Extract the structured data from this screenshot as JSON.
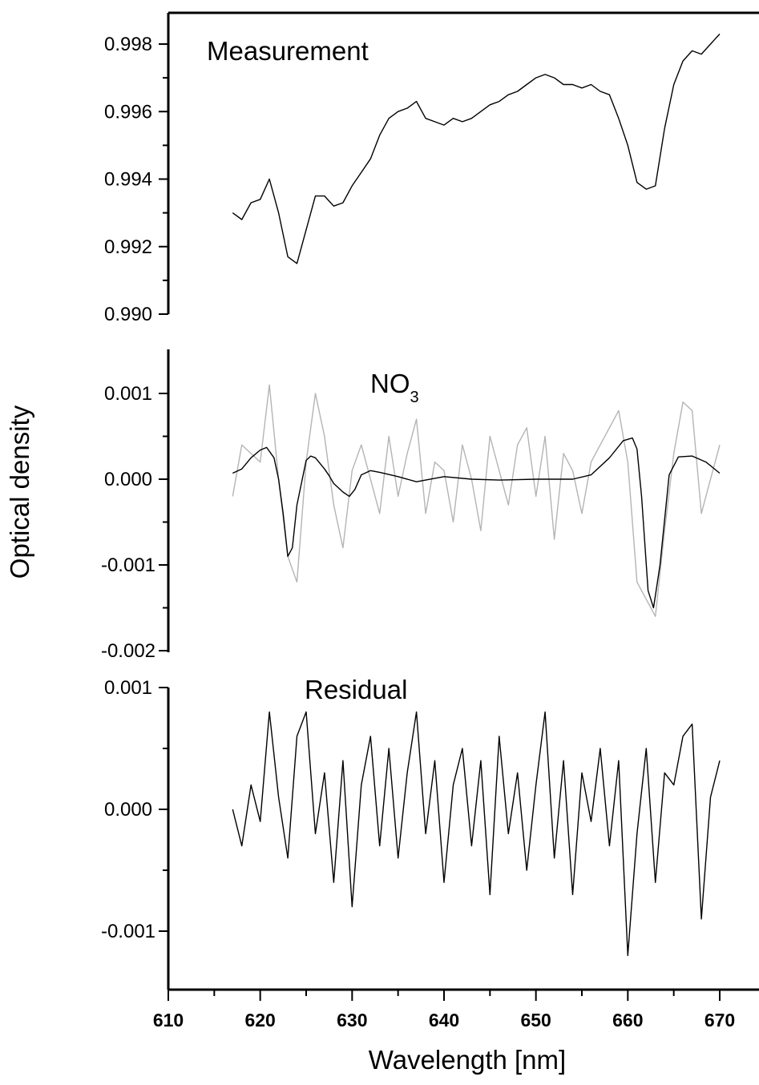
{
  "chart_data": {
    "type": "line",
    "shared_x_axis": {
      "label": "Wavelength [nm]",
      "xlim": [
        610,
        675
      ],
      "ticks": [
        610,
        620,
        630,
        640,
        650,
        660,
        670
      ],
      "tick_labels": [
        "610",
        "620",
        "630",
        "640",
        "650",
        "660",
        "670"
      ]
    },
    "shared_y_label": "Optical density",
    "panels": [
      {
        "title": "Measurement",
        "ylim": [
          0.99,
          0.999
        ],
        "yticks": [
          0.99,
          0.992,
          0.994,
          0.996,
          0.998
        ],
        "ytick_labels": [
          "0.990",
          "0.992",
          "0.994",
          "0.996",
          "0.998"
        ],
        "series": [
          {
            "color": "#000000",
            "x": [
              617,
              618,
              619,
              620,
              621,
              622,
              623,
              624,
              625,
              626,
              627,
              628,
              629,
              630,
              631,
              632,
              633,
              634,
              635,
              636,
              637,
              638,
              639,
              640,
              641,
              642,
              643,
              644,
              645,
              646,
              647,
              648,
              649,
              650,
              651,
              652,
              653,
              654,
              655,
              656,
              657,
              658,
              659,
              660,
              661,
              662,
              663,
              664,
              665,
              666,
              667,
              668,
              669,
              670
            ],
            "y": [
              0.993,
              0.9928,
              0.9933,
              0.9934,
              0.994,
              0.993,
              0.9917,
              0.9915,
              0.9925,
              0.9935,
              0.9935,
              0.9932,
              0.9933,
              0.9938,
              0.9942,
              0.9946,
              0.9953,
              0.9958,
              0.996,
              0.9961,
              0.9963,
              0.9958,
              0.9957,
              0.9956,
              0.9958,
              0.9957,
              0.9958,
              0.996,
              0.9962,
              0.9963,
              0.9965,
              0.9966,
              0.9968,
              0.997,
              0.9971,
              0.997,
              0.9968,
              0.9968,
              0.9967,
              0.9968,
              0.9966,
              0.9965,
              0.9958,
              0.995,
              0.9939,
              0.9937,
              0.9938,
              0.9955,
              0.9968,
              0.9975,
              0.9978,
              0.9977,
              0.998,
              0.9983
            ]
          }
        ]
      },
      {
        "title": "NO",
        "title_subscript": "3",
        "ylim": [
          -0.002,
          0.0015
        ],
        "yticks": [
          -0.002,
          -0.001,
          0.0,
          0.001
        ],
        "ytick_labels": [
          "-0.002",
          "-0.001",
          "0.000",
          "0.001"
        ],
        "series": [
          {
            "color": "#b4b4b4",
            "x": [
              617,
              618,
              619,
              620,
              621,
              622,
              623,
              624,
              625,
              626,
              627,
              628,
              629,
              630,
              631,
              632,
              633,
              634,
              635,
              636,
              637,
              638,
              639,
              640,
              641,
              642,
              643,
              644,
              645,
              646,
              647,
              648,
              649,
              650,
              651,
              652,
              653,
              654,
              655,
              656,
              657,
              658,
              659,
              660,
              661,
              662,
              663,
              664,
              665,
              666,
              667,
              668,
              669,
              670
            ],
            "y": [
              -0.0002,
              0.0004,
              0.0003,
              0.0002,
              0.0011,
              0.0,
              -0.0009,
              -0.0012,
              0.0002,
              0.001,
              0.0005,
              -0.0003,
              -0.0008,
              0.0001,
              0.0004,
              0.0,
              -0.0004,
              0.0005,
              -0.0002,
              0.0003,
              0.0007,
              -0.0004,
              0.0002,
              0.0001,
              -0.0005,
              0.0004,
              0.0,
              -0.0006,
              0.0005,
              0.0001,
              -0.0003,
              0.0004,
              0.0006,
              -0.0002,
              0.0005,
              -0.0007,
              0.0003,
              0.0001,
              -0.0004,
              0.0002,
              0.0004,
              0.0006,
              0.0008,
              0.0002,
              -0.0012,
              -0.0014,
              -0.0016,
              -0.0006,
              0.0003,
              0.0009,
              0.0008,
              -0.0004,
              0.0,
              0.0004
            ]
          },
          {
            "color": "#000000",
            "x": [
              617,
              618,
              619,
              620,
              620.7,
              621.5,
              622,
              622.5,
              623,
              623.5,
              624,
              625,
              625.5,
              626,
              627,
              627.5,
              628,
              629,
              629.7,
              630.3,
              631,
              632,
              633,
              635,
              637,
              640,
              643,
              646,
              650,
              654,
              656,
              658,
              659.5,
              660.5,
              661,
              661.5,
              662.2,
              662.8,
              663.5,
              664.5,
              665.5,
              667,
              668.5,
              670
            ],
            "y": [
              7e-05,
              0.00012,
              0.00025,
              0.00034,
              0.00037,
              0.00025,
              0.0,
              -0.0004,
              -0.0009,
              -0.0008,
              -0.0003,
              0.00022,
              0.00027,
              0.00025,
              0.00012,
              4e-05,
              -5e-05,
              -0.00015,
              -0.0002,
              -0.00012,
              5e-05,
              0.0001,
              8e-05,
              3e-05,
              -3e-05,
              3e-05,
              0.0,
              -1e-05,
              0.0,
              0.0,
              5e-05,
              0.00025,
              0.00045,
              0.00048,
              0.00035,
              -0.0002,
              -0.0013,
              -0.0015,
              -0.001,
              5e-05,
              0.00026,
              0.00027,
              0.0002,
              7e-05
            ]
          }
        ]
      },
      {
        "title": "Residual",
        "ylim": [
          -0.0016,
          0.001
        ],
        "yticks": [
          -0.001,
          0.0,
          0.001
        ],
        "ytick_labels": [
          "-0.001",
          "0.000",
          "0.001"
        ],
        "series": [
          {
            "color": "#000000",
            "x": [
              617,
              618,
              619,
              620,
              621,
              622,
              623,
              624,
              625,
              626,
              627,
              628,
              629,
              630,
              631,
              632,
              633,
              634,
              635,
              636,
              637,
              638,
              639,
              640,
              641,
              642,
              643,
              644,
              645,
              646,
              647,
              648,
              649,
              650,
              651,
              652,
              653,
              654,
              655,
              656,
              657,
              658,
              659,
              660,
              661,
              662,
              663,
              664,
              665,
              666,
              667,
              668,
              669,
              670
            ],
            "y": [
              0.0,
              -0.0003,
              0.0002,
              -0.0001,
              0.0008,
              0.0001,
              -0.0004,
              0.0006,
              0.0008,
              -0.0002,
              0.0003,
              -0.0006,
              0.0004,
              -0.0008,
              0.0002,
              0.0006,
              -0.0003,
              0.0005,
              -0.0004,
              0.0003,
              0.0008,
              -0.0002,
              0.0004,
              -0.0006,
              0.0002,
              0.0005,
              -0.0003,
              0.0004,
              -0.0007,
              0.0006,
              -0.0002,
              0.0003,
              -0.0005,
              0.0002,
              0.0008,
              -0.0004,
              0.0004,
              -0.0007,
              0.0003,
              -0.0001,
              0.0005,
              -0.0003,
              0.0004,
              -0.0012,
              -0.0002,
              0.0005,
              -0.0006,
              0.0003,
              0.0002,
              0.0006,
              0.0007,
              -0.0009,
              0.0001,
              0.0004
            ]
          }
        ]
      }
    ]
  }
}
